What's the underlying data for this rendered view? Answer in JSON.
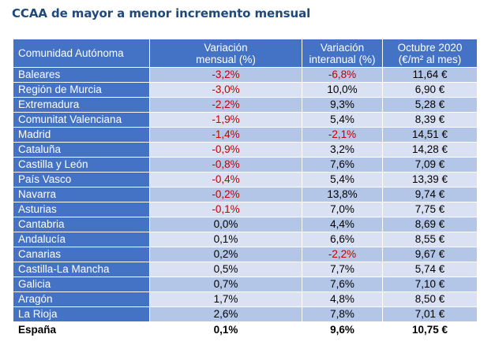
{
  "title": "CCAA de mayor a menor incremento mensual",
  "colors": {
    "header": "#4472c4",
    "row_dark": "#b4c6e7",
    "row_light": "#d9e1f2",
    "negative": "#c00000",
    "title": "#1f497d"
  },
  "chart_data": {
    "type": "table",
    "columns": [
      "Comunidad Autónoma",
      "Variación mensual (%)",
      "Variación interanual (%)",
      "Octubre 2020 (€/m² al mes)"
    ],
    "header": {
      "name": "Comunidad Autónoma",
      "mensual_1": "Variación",
      "mensual_2": "mensual (%)",
      "interanual_1": "Variación",
      "interanual_2": "interanual (%)",
      "octubre_1": "Octubre 2020",
      "octubre_2": "(€/m² al mes)"
    },
    "rows": [
      {
        "name": "Baleares",
        "mensual": "-3,2%",
        "interanual": "-6,8%",
        "precio": "11,64 €"
      },
      {
        "name": "Región de Murcia",
        "mensual": "-3,0%",
        "interanual": "10,0%",
        "precio": "6,90 €"
      },
      {
        "name": "Extremadura",
        "mensual": "-2,2%",
        "interanual": "9,3%",
        "precio": "5,28 €"
      },
      {
        "name": "Comunitat Valenciana",
        "mensual": "-1,9%",
        "interanual": "5,4%",
        "precio": "8,39 €"
      },
      {
        "name": "Madrid",
        "mensual": "-1,4%",
        "interanual": "-2,1%",
        "precio": "14,51 €"
      },
      {
        "name": "Cataluña",
        "mensual": "-0,9%",
        "interanual": "3,2%",
        "precio": "14,28 €"
      },
      {
        "name": "Castilla y León",
        "mensual": "-0,8%",
        "interanual": "7,6%",
        "precio": "7,09 €"
      },
      {
        "name": "País Vasco",
        "mensual": "-0,4%",
        "interanual": "5,4%",
        "precio": "13,39 €"
      },
      {
        "name": "Navarra",
        "mensual": "-0,2%",
        "interanual": "13,8%",
        "precio": "9,74 €"
      },
      {
        "name": "Asturias",
        "mensual": "-0,1%",
        "interanual": "7,0%",
        "precio": "7,75 €"
      },
      {
        "name": "Cantabria",
        "mensual": "0,0%",
        "interanual": "4,4%",
        "precio": "8,69 €"
      },
      {
        "name": "Andalucía",
        "mensual": "0,1%",
        "interanual": "6,6%",
        "precio": "8,55 €"
      },
      {
        "name": "Canarias",
        "mensual": "0,2%",
        "interanual": "-2,2%",
        "precio": "9,67 €"
      },
      {
        "name": "Castilla-La Mancha",
        "mensual": "0,5%",
        "interanual": "7,7%",
        "precio": "5,74 €"
      },
      {
        "name": "Galicia",
        "mensual": "0,7%",
        "interanual": "7,6%",
        "precio": "7,10 €"
      },
      {
        "name": "Aragón",
        "mensual": "1,7%",
        "interanual": "4,8%",
        "precio": "8,50 €"
      },
      {
        "name": "La Rioja",
        "mensual": "2,6%",
        "interanual": "7,8%",
        "precio": "7,01 €"
      }
    ],
    "total": {
      "name": "España",
      "mensual": "0,1%",
      "interanual": "9,6%",
      "precio": "10,75 €"
    }
  }
}
